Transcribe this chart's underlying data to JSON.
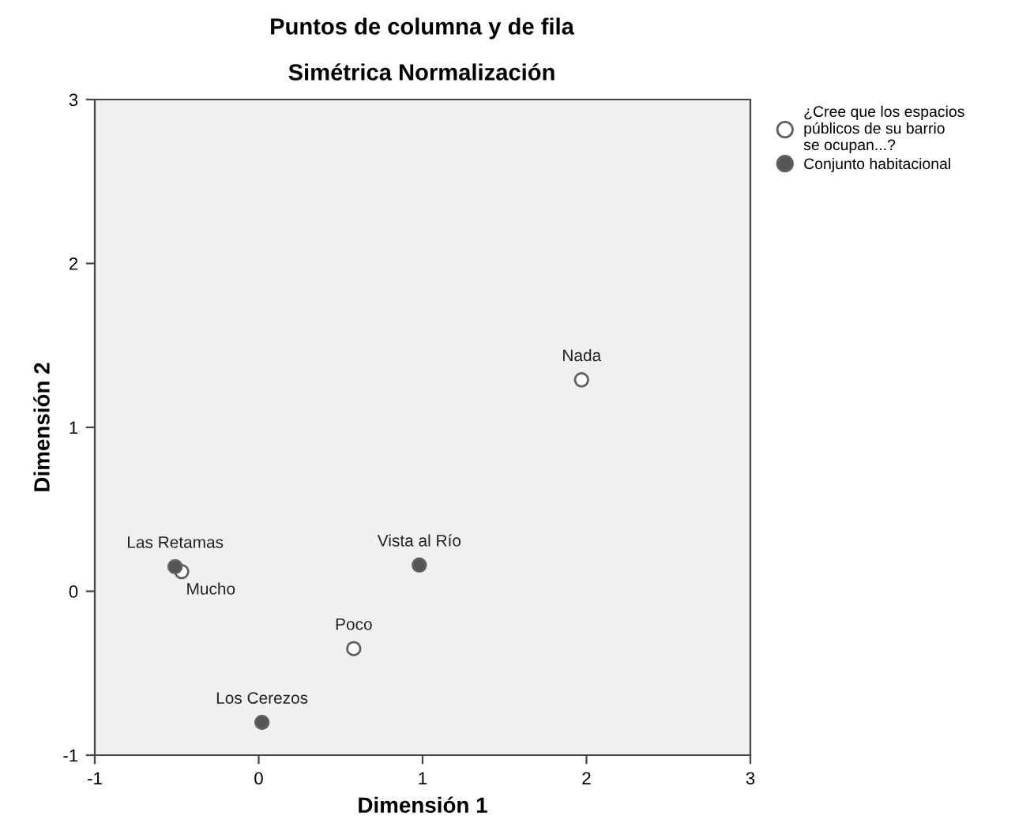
{
  "chart_data": {
    "type": "scatter",
    "title": "Puntos de columna y de fila",
    "subtitle": "Simétrica Normalización",
    "xlabel": "Dimensión 1",
    "ylabel": "Dimensión 2",
    "series": [
      {
        "name": "¿Cree que los espacios públicos de su barrio se ocupan...?",
        "color": "#ffffff",
        "x": [
          1.97,
          -0.47,
          0.58
        ],
        "values": [
          1.29,
          0.12,
          -0.35
        ]
      },
      {
        "name": "Conjunto habitacional",
        "color": "#555555",
        "x": [
          -0.51,
          0.98,
          0.02
        ],
        "values": [
          0.15,
          0.16,
          -0.8
        ]
      }
    ],
    "annotations": [
      {
        "text": "Nada",
        "x": 1.97,
        "y": 1.29
      },
      {
        "text": "Mucho",
        "x": -0.47,
        "y": 0.12
      },
      {
        "text": "Poco",
        "x": 0.58,
        "y": -0.35
      },
      {
        "text": "Las Retamas",
        "x": -0.51,
        "y": 0.15
      },
      {
        "text": "Vista al Río",
        "x": 0.98,
        "y": 0.16
      },
      {
        "text": "Los Cerezos",
        "x": 0.02,
        "y": -0.8
      }
    ],
    "xlim": [
      -1,
      3
    ],
    "ylim": [
      -1,
      3
    ],
    "xticks": [
      -1,
      0,
      1,
      2,
      3
    ],
    "yticks": [
      -1,
      0,
      1,
      2,
      3
    ],
    "grid": false,
    "legend": "top right",
    "marker": "circle"
  }
}
